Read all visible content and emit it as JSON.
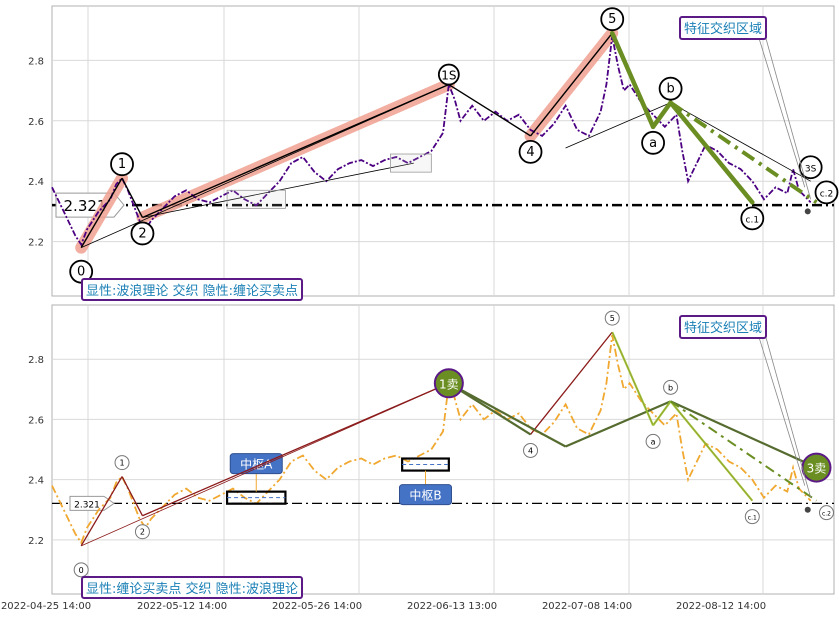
{
  "chart_data": [
    {
      "type": "line",
      "panel": "top",
      "title": "",
      "caption": "显性:波浪理论 交织 隐性:缠论买卖点",
      "zone_label": "特征交织区域",
      "price_marker": "2.321",
      "reference_level": 2.321,
      "ylim": [
        2.02,
        2.98
      ],
      "y_ticks": [
        2.2,
        2.4,
        2.6,
        2.8
      ],
      "x_ticks": [
        "2022-04-25 14:00",
        "2022-05-12 14:00",
        "2022-05-26 14:00",
        "2022-06-13 13:00",
        "2022-07-08 14:00",
        "2022-08-12 14:00"
      ],
      "grid": true,
      "colors": {
        "price": "#4b0082",
        "highlight": "#f0a090",
        "wave_green": "#6b8e23",
        "ref_line": "#000000"
      },
      "price_series": [
        [
          0,
          2.38
        ],
        [
          2,
          2.3
        ],
        [
          4,
          2.22
        ],
        [
          5,
          2.19
        ],
        [
          6,
          2.24
        ],
        [
          8,
          2.3
        ],
        [
          10,
          2.34
        ],
        [
          11,
          2.39
        ],
        [
          12,
          2.41
        ],
        [
          13,
          2.37
        ],
        [
          14,
          2.32
        ],
        [
          15,
          2.27
        ],
        [
          16,
          2.24
        ],
        [
          17,
          2.27
        ],
        [
          19,
          2.31
        ],
        [
          21,
          2.35
        ],
        [
          23,
          2.37
        ],
        [
          25,
          2.34
        ],
        [
          27,
          2.33
        ],
        [
          29,
          2.35
        ],
        [
          31,
          2.37
        ],
        [
          33,
          2.34
        ],
        [
          35,
          2.32
        ],
        [
          37,
          2.36
        ],
        [
          39,
          2.4
        ],
        [
          41,
          2.46
        ],
        [
          43,
          2.48
        ],
        [
          45,
          2.43
        ],
        [
          47,
          2.4
        ],
        [
          49,
          2.44
        ],
        [
          51,
          2.46
        ],
        [
          53,
          2.47
        ],
        [
          55,
          2.45
        ],
        [
          57,
          2.47
        ],
        [
          59,
          2.48
        ],
        [
          61,
          2.46
        ],
        [
          63,
          2.48
        ],
        [
          65,
          2.5
        ],
        [
          67,
          2.56
        ],
        [
          68,
          2.72
        ],
        [
          69,
          2.67
        ],
        [
          70,
          2.6
        ],
        [
          72,
          2.65
        ],
        [
          74,
          2.6
        ],
        [
          76,
          2.63
        ],
        [
          78,
          2.6
        ],
        [
          80,
          2.62
        ],
        [
          82,
          2.57
        ],
        [
          84,
          2.55
        ],
        [
          86,
          2.59
        ],
        [
          88,
          2.65
        ],
        [
          90,
          2.57
        ],
        [
          92,
          2.55
        ],
        [
          94,
          2.63
        ],
        [
          95,
          2.72
        ],
        [
          96,
          2.88
        ],
        [
          97,
          2.78
        ],
        [
          98,
          2.7
        ],
        [
          99,
          2.72
        ],
        [
          101,
          2.66
        ],
        [
          103,
          2.62
        ],
        [
          105,
          2.58
        ],
        [
          107,
          2.62
        ],
        [
          108,
          2.5
        ],
        [
          109,
          2.4
        ],
        [
          110,
          2.44
        ],
        [
          112,
          2.52
        ],
        [
          114,
          2.5
        ],
        [
          116,
          2.46
        ],
        [
          118,
          2.44
        ],
        [
          120,
          2.4
        ],
        [
          122,
          2.34
        ],
        [
          124,
          2.38
        ],
        [
          126,
          2.36
        ],
        [
          127,
          2.44
        ],
        [
          128,
          2.37
        ],
        [
          130,
          2.33
        ]
      ],
      "wave_points": [
        {
          "label": "0",
          "x": 5,
          "y": 2.18
        },
        {
          "label": "1",
          "x": 12,
          "y": 2.41
        },
        {
          "label": "2",
          "x": 15.5,
          "y": 2.28
        },
        {
          "label": "1S",
          "x": 68,
          "y": 2.72
        },
        {
          "label": "4",
          "x": 82,
          "y": 2.55
        },
        {
          "label": "5",
          "x": 96,
          "y": 2.89
        },
        {
          "label": "a",
          "x": 103,
          "y": 2.58
        },
        {
          "label": "b",
          "x": 106,
          "y": 2.66
        },
        {
          "label": "c.1",
          "x": 120,
          "y": 2.33
        },
        {
          "label": "3S",
          "x": 130,
          "y": 2.38
        },
        {
          "label": "c.2",
          "x": 131,
          "y": 2.33
        }
      ]
    },
    {
      "type": "line",
      "panel": "bottom",
      "title": "",
      "caption": "显性:缠论买卖点 交织 隐性:波浪理论",
      "zone_label": "特征交织区域",
      "price_marker": "2.321",
      "reference_level": 2.321,
      "ylim": [
        2.02,
        2.98
      ],
      "y_ticks": [
        2.2,
        2.4,
        2.6,
        2.8
      ],
      "x_ticks": [
        "2022-04-25 14:00",
        "2022-05-12 14:00",
        "2022-05-26 14:00",
        "2022-06-13 13:00",
        "2022-07-08 14:00",
        "2022-08-12 14:00"
      ],
      "grid": true,
      "colors": {
        "price": "#f0a830",
        "stroke_line": "#8b1a1a",
        "wave_green": "#9acd32",
        "center_box": "#000000",
        "center_label_bg": "#4472c4"
      },
      "centers": [
        {
          "label": "中枢A",
          "x0": 30,
          "x1": 40,
          "y0": 2.32,
          "y1": 2.36
        },
        {
          "label": "中枢B",
          "x0": 60,
          "x1": 68,
          "y0": 2.43,
          "y1": 2.47
        }
      ],
      "signals": [
        {
          "label": "1卖",
          "x": 68,
          "y": 2.72
        },
        {
          "label": "3卖",
          "x": 131,
          "y": 2.44
        }
      ],
      "wave_points": [
        {
          "label": "0",
          "x": 5,
          "y": 2.18
        },
        {
          "label": "1",
          "x": 12,
          "y": 2.41
        },
        {
          "label": "2",
          "x": 15.5,
          "y": 2.28
        },
        {
          "label": "4",
          "x": 82,
          "y": 2.55
        },
        {
          "label": "5",
          "x": 96,
          "y": 2.89
        },
        {
          "label": "a",
          "x": 103,
          "y": 2.58
        },
        {
          "label": "b",
          "x": 106,
          "y": 2.66
        },
        {
          "label": "c.1",
          "x": 120,
          "y": 2.33
        },
        {
          "label": "c.2",
          "x": 131,
          "y": 2.33
        }
      ]
    }
  ]
}
